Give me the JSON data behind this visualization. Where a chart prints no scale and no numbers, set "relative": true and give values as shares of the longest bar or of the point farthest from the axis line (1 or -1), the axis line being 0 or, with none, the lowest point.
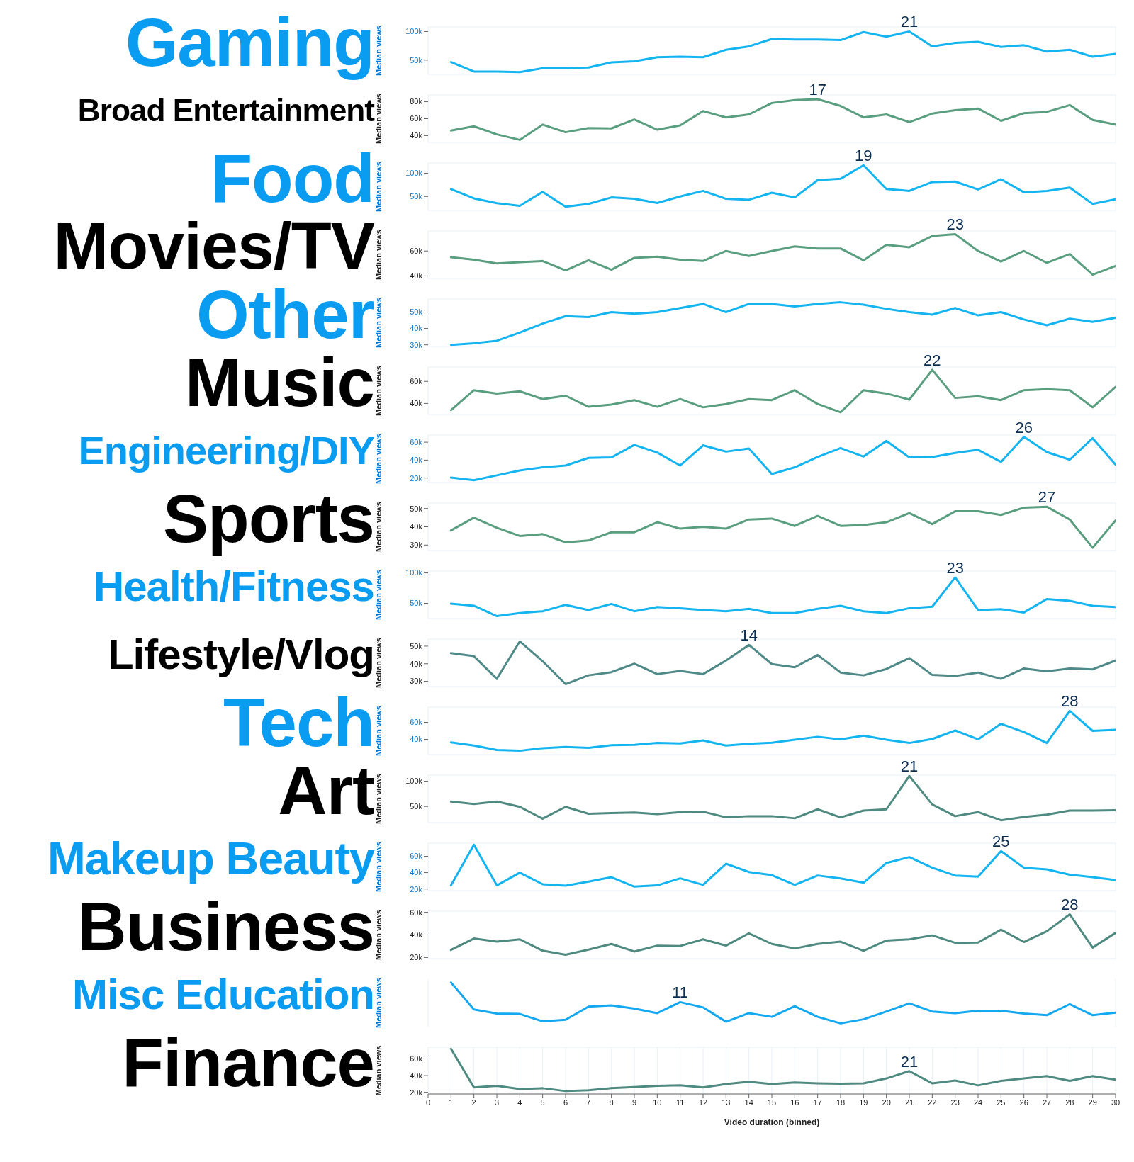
{
  "chart_data": [
    {
      "type": "line",
      "title": "Gaming",
      "ylabel": "Median views",
      "x": [
        1,
        2,
        3,
        4,
        5,
        6,
        7,
        8,
        9,
        10,
        11,
        12,
        13,
        14,
        15,
        16,
        17,
        18,
        19,
        20,
        21,
        22,
        23,
        24,
        25,
        26,
        27,
        28,
        29,
        30
      ],
      "xlim": [
        0,
        30
      ],
      "xticks": [
        0,
        1,
        2,
        3,
        4,
        5,
        6,
        7,
        8,
        9,
        10,
        11,
        12,
        13,
        14,
        15,
        16,
        17,
        18,
        19,
        20,
        21,
        22,
        23,
        24,
        25,
        26,
        27,
        28,
        29,
        30
      ],
      "ylim": [
        25000,
        108000
      ],
      "yticks": [
        {
          "value": 50000,
          "label": "50k"
        },
        {
          "value": 100000,
          "label": "100k"
        }
      ],
      "tick_labels": "y",
      "grid": true,
      "marker": "none",
      "annotations": [
        {
          "text": "21",
          "x": 21,
          "y": 100000
        }
      ],
      "series": [
        {
          "color": "#14b4f0",
          "values": [
            46500,
            30000,
            30000,
            29000,
            36000,
            36000,
            37000,
            46000,
            48000,
            55000,
            56000,
            55000,
            68000,
            74000,
            87000,
            86000,
            86000,
            85000,
            99000,
            91000,
            100000,
            74000,
            80000,
            82000,
            73000,
            76000,
            65000,
            68000,
            56000,
            61000
          ]
        }
      ]
    },
    {
      "type": "line",
      "title": "Broad Entertainment",
      "ylabel": "Median views",
      "x": [
        1,
        2,
        3,
        4,
        5,
        6,
        7,
        8,
        9,
        10,
        11,
        12,
        13,
        14,
        15,
        16,
        17,
        18,
        19,
        20,
        21,
        22,
        23,
        24,
        25,
        26,
        27,
        28,
        29,
        30
      ],
      "xlim": [
        0,
        30
      ],
      "xticks": [
        0,
        1,
        2,
        3,
        4,
        5,
        6,
        7,
        8,
        9,
        10,
        11,
        12,
        13,
        14,
        15,
        16,
        17,
        18,
        19,
        20,
        21,
        22,
        23,
        24,
        25,
        26,
        27,
        28,
        29,
        30
      ],
      "ylim": [
        32000,
        88000
      ],
      "yticks": [
        {
          "value": 40000,
          "label": "40k"
        },
        {
          "value": 60000,
          "label": "60k"
        },
        {
          "value": 80000,
          "label": "80k"
        }
      ],
      "tick_labels": "y",
      "grid": true,
      "marker": "none",
      "annotations": [
        {
          "text": "17",
          "x": 17,
          "y": 83000
        }
      ],
      "series": [
        {
          "color": "#5a9e80",
          "values": [
            46000,
            51000,
            41500,
            35000,
            53000,
            44000,
            49000,
            48500,
            59000,
            47000,
            52000,
            69000,
            61500,
            65000,
            78500,
            82000,
            83000,
            75000,
            61500,
            65000,
            56000,
            66000,
            70000,
            72000,
            57500,
            66500,
            68000,
            76000,
            58500,
            53000
          ]
        }
      ]
    },
    {
      "type": "line",
      "title": "Food",
      "ylabel": "Median views",
      "x": [
        1,
        2,
        3,
        4,
        5,
        6,
        7,
        8,
        9,
        10,
        11,
        12,
        13,
        14,
        15,
        16,
        17,
        18,
        19,
        20,
        21,
        22,
        23,
        24,
        25,
        26,
        27,
        28,
        29,
        30
      ],
      "xlim": [
        0,
        30
      ],
      "xticks": [
        0,
        1,
        2,
        3,
        4,
        5,
        6,
        7,
        8,
        9,
        10,
        11,
        12,
        13,
        14,
        15,
        16,
        17,
        18,
        19,
        20,
        21,
        22,
        23,
        24,
        25,
        26,
        27,
        28,
        29,
        30
      ],
      "ylim": [
        20000,
        122000
      ],
      "yticks": [
        {
          "value": 50000,
          "label": "50k"
        },
        {
          "value": 100000,
          "label": "100k"
        }
      ],
      "tick_labels": "y",
      "grid": true,
      "marker": "none",
      "annotations": [
        {
          "text": "19",
          "x": 19,
          "y": 117000
        }
      ],
      "series": [
        {
          "color": "#14b4f0",
          "values": [
            66000,
            46000,
            35500,
            30000,
            60000,
            28000,
            34000,
            48000,
            45000,
            36000,
            50000,
            62000,
            45000,
            43000,
            58000,
            48000,
            85000,
            88000,
            117000,
            66000,
            62000,
            81000,
            82000,
            65000,
            87000,
            59000,
            62000,
            69000,
            34000,
            44000
          ]
        }
      ]
    },
    {
      "type": "line",
      "title": "Movies/TV",
      "ylabel": "Median views",
      "x": [
        1,
        2,
        3,
        4,
        5,
        6,
        7,
        8,
        9,
        10,
        11,
        12,
        13,
        14,
        15,
        16,
        17,
        18,
        19,
        20,
        21,
        22,
        23,
        24,
        25,
        26,
        27,
        28,
        29,
        30
      ],
      "xlim": [
        0,
        30
      ],
      "xticks": [
        0,
        1,
        2,
        3,
        4,
        5,
        6,
        7,
        8,
        9,
        10,
        11,
        12,
        13,
        14,
        15,
        16,
        17,
        18,
        19,
        20,
        21,
        22,
        23,
        24,
        25,
        26,
        27,
        28,
        29,
        30
      ],
      "ylim": [
        38000,
        76000
      ],
      "yticks": [
        {
          "value": 40000,
          "label": "40k"
        },
        {
          "value": 60000,
          "label": "60k"
        }
      ],
      "tick_labels": "y",
      "grid": true,
      "marker": "none",
      "annotations": [
        {
          "text": "23",
          "x": 23,
          "y": 73500
        }
      ],
      "series": [
        {
          "color": "#5a9e80",
          "values": [
            55000,
            53000,
            50000,
            51000,
            52000,
            44500,
            52500,
            45000,
            54500,
            55500,
            53000,
            52000,
            60000,
            56000,
            60000,
            63700,
            62000,
            62000,
            52500,
            65000,
            63000,
            72000,
            73500,
            60000,
            51500,
            60000,
            50500,
            57500,
            41000,
            48000
          ]
        }
      ]
    },
    {
      "type": "line",
      "title": "Other",
      "ylabel": "Median views",
      "x": [
        1,
        2,
        3,
        4,
        5,
        6,
        7,
        8,
        9,
        10,
        11,
        12,
        13,
        14,
        15,
        16,
        17,
        18,
        19,
        20,
        21,
        22,
        23,
        24,
        25,
        26,
        27,
        28,
        29,
        30
      ],
      "xlim": [
        0,
        30
      ],
      "xticks": [
        0,
        1,
        2,
        3,
        4,
        5,
        6,
        7,
        8,
        9,
        10,
        11,
        12,
        13,
        14,
        15,
        16,
        17,
        18,
        19,
        20,
        21,
        22,
        23,
        24,
        25,
        26,
        27,
        28,
        29,
        30
      ],
      "ylim": [
        29000,
        58000
      ],
      "yticks": [
        {
          "value": 30000,
          "label": "30k"
        },
        {
          "value": 40000,
          "label": "40k"
        },
        {
          "value": 50000,
          "label": "50k"
        }
      ],
      "tick_labels": "y",
      "grid": true,
      "marker": "none",
      "series": [
        {
          "color": "#14b4f0",
          "values": [
            30000,
            31000,
            32500,
            37500,
            43000,
            47500,
            47000,
            50000,
            49000,
            50000,
            52500,
            55000,
            50000,
            55000,
            55000,
            53500,
            55000,
            56000,
            54500,
            52000,
            50000,
            48500,
            52500,
            48000,
            50000,
            45500,
            42000,
            46000,
            44000,
            46500
          ]
        }
      ]
    },
    {
      "type": "line",
      "title": "Music",
      "ylabel": "Median views",
      "x": [
        1,
        2,
        3,
        4,
        5,
        6,
        7,
        8,
        9,
        10,
        11,
        12,
        13,
        14,
        15,
        16,
        17,
        18,
        19,
        20,
        21,
        22,
        23,
        24,
        25,
        26,
        27,
        28,
        29,
        30
      ],
      "xlim": [
        0,
        30
      ],
      "xticks": [
        0,
        1,
        2,
        3,
        4,
        5,
        6,
        7,
        8,
        9,
        10,
        11,
        12,
        13,
        14,
        15,
        16,
        17,
        18,
        19,
        20,
        21,
        22,
        23,
        24,
        25,
        26,
        27,
        28,
        29,
        30
      ],
      "ylim": [
        30000,
        73000
      ],
      "yticks": [
        {
          "value": 40000,
          "label": "40k"
        },
        {
          "value": 60000,
          "label": "60k"
        }
      ],
      "tick_labels": "y",
      "grid": true,
      "marker": "none",
      "annotations": [
        {
          "text": "22",
          "x": 22,
          "y": 70500
        }
      ],
      "series": [
        {
          "color": "#5a9e80",
          "values": [
            34000,
            52000,
            49000,
            51000,
            44000,
            47000,
            37000,
            39000,
            43000,
            37000,
            44000,
            36500,
            39500,
            44000,
            43000,
            52000,
            39500,
            32000,
            52000,
            49000,
            43500,
            70500,
            45000,
            46500,
            43000,
            52000,
            53000,
            52000,
            36500,
            55000
          ]
        }
      ]
    },
    {
      "type": "line",
      "title": "Engineering/DIY",
      "ylabel": "Median views",
      "x": [
        1,
        2,
        3,
        4,
        5,
        6,
        7,
        8,
        9,
        10,
        11,
        12,
        13,
        14,
        15,
        16,
        17,
        18,
        19,
        20,
        21,
        22,
        23,
        24,
        25,
        26,
        27,
        28,
        29,
        30
      ],
      "xlim": [
        0,
        30
      ],
      "xticks": [
        0,
        1,
        2,
        3,
        4,
        5,
        6,
        7,
        8,
        9,
        10,
        11,
        12,
        13,
        14,
        15,
        16,
        17,
        18,
        19,
        20,
        21,
        22,
        23,
        24,
        25,
        26,
        27,
        28,
        29,
        30
      ],
      "ylim": [
        15000,
        68000
      ],
      "yticks": [
        {
          "value": 20000,
          "label": "20k"
        },
        {
          "value": 40000,
          "label": "40k"
        },
        {
          "value": 60000,
          "label": "60k"
        }
      ],
      "tick_labels": "y",
      "grid": true,
      "marker": "none",
      "annotations": [
        {
          "text": "26",
          "x": 26,
          "y": 66000
        }
      ],
      "series": [
        {
          "color": "#14b4f0",
          "values": [
            20500,
            17500,
            23000,
            28500,
            32000,
            34000,
            42500,
            43000,
            57000,
            48500,
            34000,
            56500,
            49500,
            53000,
            24500,
            32000,
            43500,
            53500,
            44000,
            61500,
            43000,
            43500,
            48000,
            51500,
            38000,
            66000,
            49000,
            40500,
            64500,
            35000
          ]
        }
      ]
    },
    {
      "type": "line",
      "title": "Sports",
      "ylabel": "Median views",
      "x": [
        1,
        2,
        3,
        4,
        5,
        6,
        7,
        8,
        9,
        10,
        11,
        12,
        13,
        14,
        15,
        16,
        17,
        18,
        19,
        20,
        21,
        22,
        23,
        24,
        25,
        26,
        27,
        28,
        29,
        30
      ],
      "xlim": [
        0,
        30
      ],
      "xticks": [
        0,
        1,
        2,
        3,
        4,
        5,
        6,
        7,
        8,
        9,
        10,
        11,
        12,
        13,
        14,
        15,
        16,
        17,
        18,
        19,
        20,
        21,
        22,
        23,
        24,
        25,
        26,
        27,
        28,
        29,
        30
      ],
      "ylim": [
        27000,
        53000
      ],
      "yticks": [
        {
          "value": 30000,
          "label": "30k"
        },
        {
          "value": 40000,
          "label": "40k"
        },
        {
          "value": 50000,
          "label": "50k"
        }
      ],
      "tick_labels": "y",
      "grid": true,
      "marker": "none",
      "annotations": [
        {
          "text": "27",
          "x": 27,
          "y": 51000
        }
      ],
      "series": [
        {
          "color": "#5a9e80",
          "values": [
            38000,
            45000,
            39500,
            35000,
            36000,
            31500,
            32500,
            37000,
            37000,
            42500,
            39000,
            40000,
            39000,
            44000,
            44500,
            40500,
            46000,
            40500,
            41000,
            42500,
            47500,
            41500,
            48500,
            48500,
            46500,
            50500,
            51000,
            44000,
            28500,
            43500
          ]
        }
      ]
    },
    {
      "type": "line",
      "title": "Health/Fitness",
      "ylabel": "Median views",
      "x": [
        1,
        2,
        3,
        4,
        5,
        6,
        7,
        8,
        9,
        10,
        11,
        12,
        13,
        14,
        15,
        16,
        17,
        18,
        19,
        20,
        21,
        22,
        23,
        24,
        25,
        26,
        27,
        28,
        29,
        30
      ],
      "xlim": [
        0,
        30
      ],
      "xticks": [
        0,
        1,
        2,
        3,
        4,
        5,
        6,
        7,
        8,
        9,
        10,
        11,
        12,
        13,
        14,
        15,
        16,
        17,
        18,
        19,
        20,
        21,
        22,
        23,
        24,
        25,
        26,
        27,
        28,
        29,
        30
      ],
      "ylim": [
        25000,
        103000
      ],
      "yticks": [
        {
          "value": 50000,
          "label": "50k"
        },
        {
          "value": 100000,
          "label": "100k"
        }
      ],
      "tick_labels": "y",
      "grid": true,
      "marker": "none",
      "annotations": [
        {
          "text": "23",
          "x": 23,
          "y": 92700
        }
      ],
      "series": [
        {
          "color": "#14b4f0",
          "values": [
            49400,
            46000,
            29000,
            34000,
            37000,
            47500,
            39000,
            49000,
            37000,
            44000,
            42000,
            39000,
            37000,
            41000,
            34000,
            34000,
            41000,
            46000,
            37000,
            34000,
            42000,
            44500,
            92700,
            39000,
            40500,
            35000,
            57000,
            54000,
            46000,
            44000
          ]
        }
      ]
    },
    {
      "type": "line",
      "title": "Lifestyle/Vlog",
      "ylabel": "Median views",
      "x": [
        1,
        2,
        3,
        4,
        5,
        6,
        7,
        8,
        9,
        10,
        11,
        12,
        13,
        14,
        15,
        16,
        17,
        18,
        19,
        20,
        21,
        22,
        23,
        24,
        25,
        26,
        27,
        28,
        29,
        30
      ],
      "xlim": [
        0,
        30
      ],
      "xticks": [
        0,
        1,
        2,
        3,
        4,
        5,
        6,
        7,
        8,
        9,
        10,
        11,
        12,
        13,
        14,
        15,
        16,
        17,
        18,
        19,
        20,
        21,
        22,
        23,
        24,
        25,
        26,
        27,
        28,
        29,
        30
      ],
      "ylim": [
        27000,
        54000
      ],
      "yticks": [
        {
          "value": 30000,
          "label": "30k"
        },
        {
          "value": 40000,
          "label": "40k"
        },
        {
          "value": 50000,
          "label": "50k"
        }
      ],
      "tick_labels": "y",
      "grid": true,
      "marker": "none",
      "annotations": [
        {
          "text": "14",
          "x": 14,
          "y": 50700
        }
      ],
      "series": [
        {
          "color": "#4f8a88",
          "values": [
            46000,
            44300,
            31400,
            52700,
            41400,
            28400,
            33400,
            35200,
            40000,
            34100,
            35900,
            34100,
            41800,
            50700,
            39800,
            38000,
            45000,
            35000,
            33400,
            37000,
            43200,
            33600,
            33000,
            35000,
            31400,
            37300,
            35700,
            37300,
            36800,
            41800
          ]
        }
      ]
    },
    {
      "type": "line",
      "title": "Tech",
      "ylabel": "Median views",
      "x": [
        1,
        2,
        3,
        4,
        5,
        6,
        7,
        8,
        9,
        10,
        11,
        12,
        13,
        14,
        15,
        16,
        17,
        18,
        19,
        20,
        21,
        22,
        23,
        24,
        25,
        26,
        27,
        28,
        29,
        30
      ],
      "xlim": [
        0,
        30
      ],
      "xticks": [
        0,
        1,
        2,
        3,
        4,
        5,
        6,
        7,
        8,
        9,
        10,
        11,
        12,
        13,
        14,
        15,
        16,
        17,
        18,
        19,
        20,
        21,
        22,
        23,
        24,
        25,
        26,
        27,
        28,
        29,
        30
      ],
      "ylim": [
        22000,
        78000
      ],
      "yticks": [
        {
          "value": 40000,
          "label": "40k"
        },
        {
          "value": 60000,
          "label": "60k"
        }
      ],
      "tick_labels": "y",
      "grid": true,
      "marker": "none",
      "annotations": [
        {
          "text": "28",
          "x": 28,
          "y": 73500
        }
      ],
      "series": [
        {
          "color": "#14b4f0",
          "values": [
            36500,
            32600,
            27400,
            26500,
            29600,
            30900,
            30000,
            33000,
            33500,
            35700,
            35200,
            38700,
            32600,
            34800,
            36000,
            39600,
            43000,
            40000,
            44300,
            39600,
            35700,
            40400,
            50400,
            40000,
            58300,
            48700,
            35700,
            73500,
            50000,
            51300
          ]
        }
      ]
    },
    {
      "type": "line",
      "title": "Art",
      "ylabel": "Median views",
      "x": [
        1,
        2,
        3,
        4,
        5,
        6,
        7,
        8,
        9,
        10,
        11,
        12,
        13,
        14,
        15,
        16,
        17,
        18,
        19,
        20,
        21,
        22,
        23,
        24,
        25,
        26,
        27,
        28,
        29,
        30
      ],
      "xlim": [
        0,
        30
      ],
      "xticks": [
        0,
        1,
        2,
        3,
        4,
        5,
        6,
        7,
        8,
        9,
        10,
        11,
        12,
        13,
        14,
        15,
        16,
        17,
        18,
        19,
        20,
        21,
        22,
        23,
        24,
        25,
        26,
        27,
        28,
        29,
        30
      ],
      "ylim": [
        18000,
        112000
      ],
      "yticks": [
        {
          "value": 50000,
          "label": "50k"
        },
        {
          "value": 100000,
          "label": "100k"
        }
      ],
      "tick_labels": "y",
      "grid": true,
      "marker": "none",
      "annotations": [
        {
          "text": "21",
          "x": 21,
          "y": 110500
        }
      ],
      "series": [
        {
          "color": "#4f8a80",
          "values": [
            59700,
            54800,
            59700,
            49200,
            25800,
            49200,
            35500,
            37100,
            38000,
            34800,
            38800,
            39600,
            28400,
            30800,
            30800,
            26600,
            44300,
            28400,
            41900,
            44300,
            110500,
            54000,
            30800,
            38800,
            22700,
            29100,
            33900,
            41900,
            41900,
            42700
          ]
        }
      ]
    },
    {
      "type": "line",
      "title": "Makeup Beauty",
      "ylabel": "Median views",
      "x": [
        1,
        2,
        3,
        4,
        5,
        6,
        7,
        8,
        9,
        10,
        11,
        12,
        13,
        14,
        15,
        16,
        17,
        18,
        19,
        20,
        21,
        22,
        23,
        24,
        25,
        26,
        27,
        28,
        29,
        30
      ],
      "xlim": [
        0,
        30
      ],
      "xticks": [
        0,
        1,
        2,
        3,
        4,
        5,
        6,
        7,
        8,
        9,
        10,
        11,
        12,
        13,
        14,
        15,
        16,
        17,
        18,
        19,
        20,
        21,
        22,
        23,
        24,
        25,
        26,
        27,
        28,
        29,
        30
      ],
      "ylim": [
        18000,
        76000
      ],
      "yticks": [
        {
          "value": 20000,
          "label": "20k"
        },
        {
          "value": 40000,
          "label": "40k"
        },
        {
          "value": 60000,
          "label": "60k"
        }
      ],
      "tick_labels": "y",
      "grid": true,
      "marker": "none",
      "annotations": [
        {
          "text": "25",
          "x": 25,
          "y": 66300
        }
      ],
      "series": [
        {
          "color": "#14b4f0",
          "values": [
            24400,
            74000,
            24400,
            40000,
            25800,
            24000,
            29000,
            34400,
            22900,
            24400,
            33000,
            25000,
            50900,
            40800,
            37000,
            25000,
            36500,
            33000,
            27700,
            51800,
            59000,
            46000,
            36500,
            35000,
            66300,
            46000,
            44000,
            37500,
            34400,
            31000
          ]
        }
      ]
    },
    {
      "type": "line",
      "title": "Business",
      "ylabel": "Median views",
      "x": [
        1,
        2,
        3,
        4,
        5,
        6,
        7,
        8,
        9,
        10,
        11,
        12,
        13,
        14,
        15,
        16,
        17,
        18,
        19,
        20,
        21,
        22,
        23,
        24,
        25,
        26,
        27,
        28,
        29,
        30
      ],
      "xlim": [
        0,
        30
      ],
      "xticks": [
        0,
        1,
        2,
        3,
        4,
        5,
        6,
        7,
        8,
        9,
        10,
        11,
        12,
        13,
        14,
        15,
        16,
        17,
        18,
        19,
        20,
        21,
        22,
        23,
        24,
        25,
        26,
        27,
        28,
        29,
        30
      ],
      "ylim": [
        19000,
        61000
      ],
      "yticks": [
        {
          "value": 20000,
          "label": "20k"
        },
        {
          "value": 40000,
          "label": "40k"
        },
        {
          "value": 60000,
          "label": "60k"
        }
      ],
      "tick_labels": "y",
      "grid": true,
      "marker": "none",
      "annotations": [
        {
          "text": "28",
          "x": 28,
          "y": 58200
        }
      ],
      "series": [
        {
          "color": "#4f8a80",
          "values": [
            26700,
            36800,
            34000,
            36100,
            26000,
            22500,
            27000,
            32000,
            25300,
            30500,
            30200,
            36100,
            30500,
            41400,
            32000,
            28000,
            32000,
            34000,
            26000,
            35000,
            36100,
            39600,
            33000,
            33300,
            44600,
            33700,
            43200,
            58200,
            28800,
            41800
          ]
        }
      ]
    },
    {
      "type": "line",
      "title": "Misc Education",
      "ylabel": "Median views",
      "relative": true,
      "x": [
        1,
        2,
        3,
        4,
        5,
        6,
        7,
        8,
        9,
        10,
        11,
        12,
        13,
        14,
        15,
        16,
        17,
        18,
        19,
        20,
        21,
        22,
        23,
        24,
        25,
        26,
        27,
        28,
        29,
        30
      ],
      "xlim": [
        0,
        30
      ],
      "xticks": [
        0,
        1,
        2,
        3,
        4,
        5,
        6,
        7,
        8,
        9,
        10,
        11,
        12,
        13,
        14,
        15,
        16,
        17,
        18,
        19,
        20,
        21,
        22,
        23,
        24,
        25,
        26,
        27,
        28,
        29,
        30
      ],
      "tick_labels": false,
      "grid": "x",
      "marker": "none",
      "annotations": [
        {
          "text": "11",
          "x": 11,
          "y": 0.52
        }
      ],
      "series": [
        {
          "color": "#14a8f0",
          "values": [
            1,
            0.34,
            0.24,
            0.23,
            0.05,
            0.09,
            0.41,
            0.44,
            0.36,
            0.25,
            0.52,
            0.39,
            0.04,
            0.25,
            0.16,
            0.42,
            0.16,
            0,
            0.1,
            0.29,
            0.49,
            0.29,
            0.25,
            0.31,
            0.31,
            0.24,
            0.2,
            0.47,
            0.2,
            0.26
          ]
        }
      ]
    },
    {
      "type": "line",
      "title": "Finance",
      "ylabel": "Median views",
      "xlabel": "Video duration (binned)",
      "x": [
        1,
        2,
        3,
        4,
        5,
        6,
        7,
        8,
        9,
        10,
        11,
        12,
        13,
        14,
        15,
        16,
        17,
        18,
        19,
        20,
        21,
        22,
        23,
        24,
        25,
        26,
        27,
        28,
        29,
        30
      ],
      "xlim": [
        0,
        30
      ],
      "xticks": [
        0,
        1,
        2,
        3,
        4,
        5,
        6,
        7,
        8,
        9,
        10,
        11,
        12,
        13,
        14,
        15,
        16,
        17,
        18,
        19,
        20,
        21,
        22,
        23,
        24,
        25,
        26,
        27,
        28,
        29,
        30
      ],
      "ylim": [
        18000,
        74000
      ],
      "yticks": [
        {
          "value": 20000,
          "label": "20k"
        },
        {
          "value": 40000,
          "label": "40k"
        },
        {
          "value": 60000,
          "label": "60k"
        }
      ],
      "grid": true,
      "marker": "none",
      "annotations": [
        {
          "text": "21",
          "x": 21,
          "y": 45400
        }
      ],
      "series": [
        {
          "color": "#4f8a80",
          "values": [
            72000,
            25900,
            27800,
            23900,
            24900,
            21500,
            22400,
            24900,
            26300,
            27800,
            28300,
            25900,
            29800,
            32700,
            29800,
            31700,
            30700,
            30200,
            30700,
            36600,
            45400,
            30700,
            34100,
            28300,
            33700,
            36600,
            39500,
            33700,
            39500,
            35100
          ]
        }
      ]
    }
  ]
}
